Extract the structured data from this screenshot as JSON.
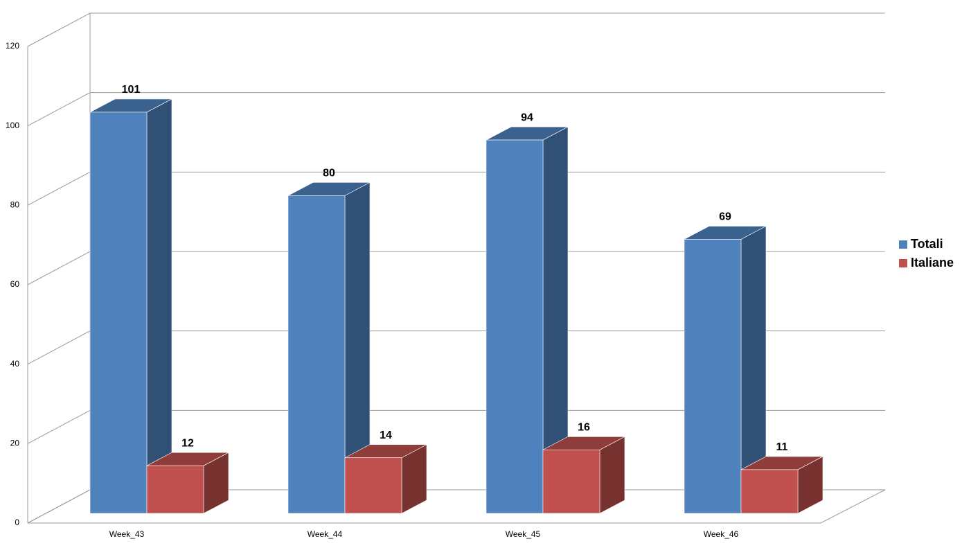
{
  "chart_data": {
    "type": "bar3d",
    "categories": [
      "Week_43",
      "Week_44",
      "Week_45",
      "Week_46"
    ],
    "series": [
      {
        "name": "Totali",
        "color": "#4f81bd",
        "values": [
          101,
          80,
          94,
          69
        ]
      },
      {
        "name": "Italiane",
        "color": "#c0504d",
        "values": [
          12,
          14,
          16,
          11
        ]
      }
    ],
    "ylim": [
      0,
      120
    ],
    "yticks": [
      0,
      20,
      40,
      60,
      80,
      100,
      120
    ],
    "grid": true,
    "legend": "right"
  }
}
